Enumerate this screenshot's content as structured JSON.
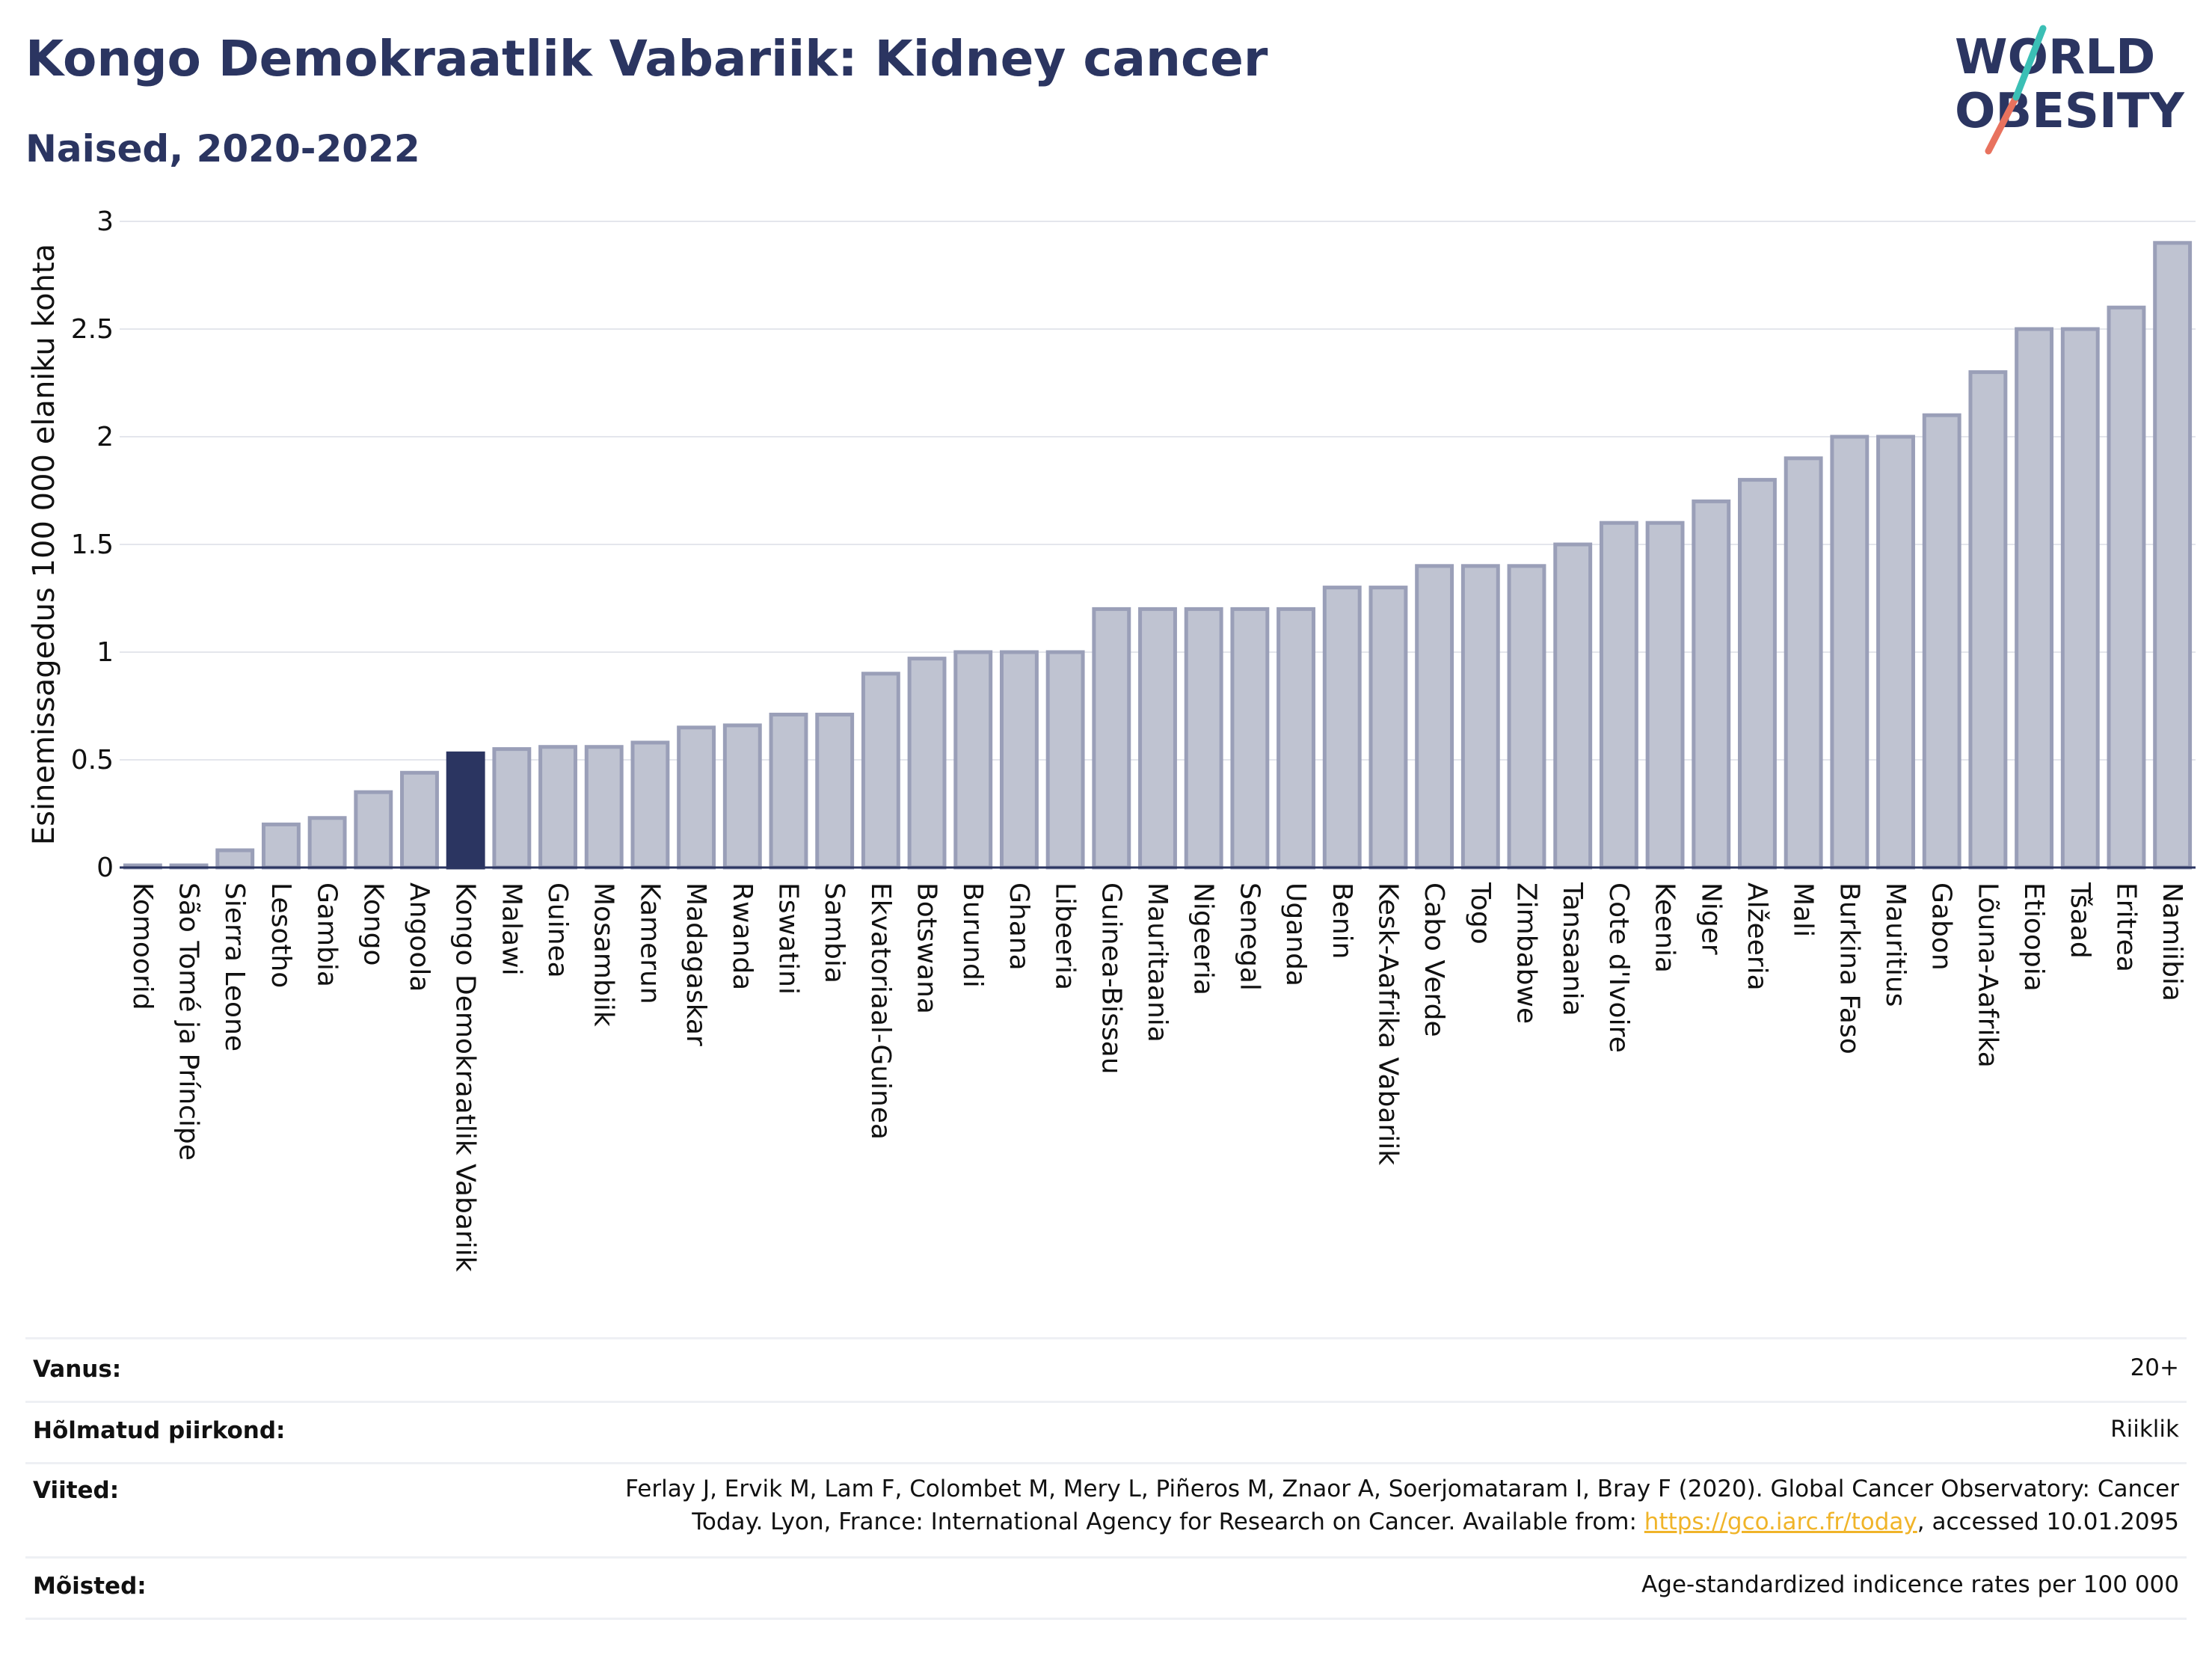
{
  "header": {
    "title": "Kongo Demokraatlik Vabariik: Kidney cancer",
    "subtitle": "Naised, 2020-2022"
  },
  "logo": {
    "line1": "WORLD",
    "line2": "OBESITY"
  },
  "colors": {
    "highlight": "#2b3561",
    "bar_fill": "#bfc3d1",
    "bar_stroke": "#9a9fb8",
    "text_dark": "#2b3561",
    "logo_teal": "#3bbfb5",
    "logo_coral": "#e8725e"
  },
  "chart_data": {
    "type": "bar",
    "title": "",
    "xlabel": "",
    "ylabel": "Esinemissagedus 100 000 elaniku kohta",
    "ylim": [
      0,
      3
    ],
    "yticks": [
      "0",
      "0.5",
      "1",
      "1.5",
      "2",
      "2.5",
      "3"
    ],
    "grid": true,
    "highlight_category": "Kongo Demokraatlik Vabariik",
    "categories": [
      "Komoorid",
      "São Tomé ja Príncipe",
      "Sierra Leone",
      "Lesotho",
      "Gambia",
      "Kongo",
      "Angoola",
      "Kongo Demokraatlik Vabariik",
      "Malawi",
      "Guinea",
      "Mosambiik",
      "Kamerun",
      "Madagaskar",
      "Rwanda",
      "Eswatini",
      "Sambia",
      "Ekvatoriaal-Guinea",
      "Botswana",
      "Burundi",
      "Ghana",
      "Libeeria",
      "Guinea-Bissau",
      "Mauritaania",
      "Nigeeria",
      "Senegal",
      "Uganda",
      "Benin",
      "Kesk-Aafrika Vabariik",
      "Cabo Verde",
      "Togo",
      "Zimbabwe",
      "Tansaania",
      "Cote d'Ivoire",
      "Keenia",
      "Niger",
      "Alžeeria",
      "Mali",
      "Burkina Faso",
      "Mauritius",
      "Gabon",
      "Lõuna-Aafrika",
      "Etioopia",
      "Tšaad",
      "Eritrea",
      "Namiibia"
    ],
    "values": [
      0.01,
      0.01,
      0.08,
      0.2,
      0.23,
      0.35,
      0.44,
      0.53,
      0.55,
      0.56,
      0.56,
      0.58,
      0.65,
      0.66,
      0.71,
      0.71,
      0.9,
      0.97,
      1.0,
      1.0,
      1.0,
      1.2,
      1.2,
      1.2,
      1.2,
      1.2,
      1.3,
      1.3,
      1.4,
      1.4,
      1.4,
      1.5,
      1.6,
      1.6,
      1.7,
      1.8,
      1.9,
      2.0,
      2.0,
      2.1,
      2.3,
      2.5,
      2.5,
      2.6,
      2.9
    ]
  },
  "info": {
    "age_label": "Vanus:",
    "age_value": "20+",
    "region_label": "Hõlmatud piirkond:",
    "region_value": "Riiklik",
    "refs_label": "Viited:",
    "refs_line1": "Ferlay J, Ervik M, Lam F, Colombet M, Mery L, Piñeros M, Znaor A, Soerjomataram I, Bray F (2020). Global Cancer Observatory: Cancer",
    "refs_line2_pre": "Today. Lyon, France: International Agency for Research on Cancer. Available from: ",
    "refs_link": "https://gco.iarc.fr/today",
    "refs_line2_post": ", accessed 10.01.2095",
    "def_label": "Mõisted:",
    "def_value": "Age-standardized indicence rates per 100 000"
  }
}
